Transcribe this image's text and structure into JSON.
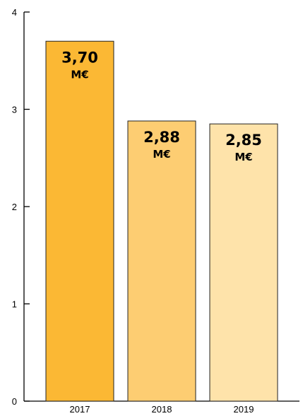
{
  "chart_data": {
    "type": "bar",
    "categories": [
      "2017",
      "2018",
      "2019"
    ],
    "values": [
      3.7,
      2.88,
      2.85
    ],
    "value_labels": [
      "3,70",
      "2,88",
      "2,85"
    ],
    "unit_label": "M€",
    "ylim": [
      0,
      4
    ],
    "y_ticks": [
      0,
      1,
      2,
      3,
      4
    ],
    "grid": false,
    "colors": [
      "#FBB834",
      "#FDCD72",
      "#FEE3AA"
    ],
    "bar_edge_color": "#222222"
  }
}
